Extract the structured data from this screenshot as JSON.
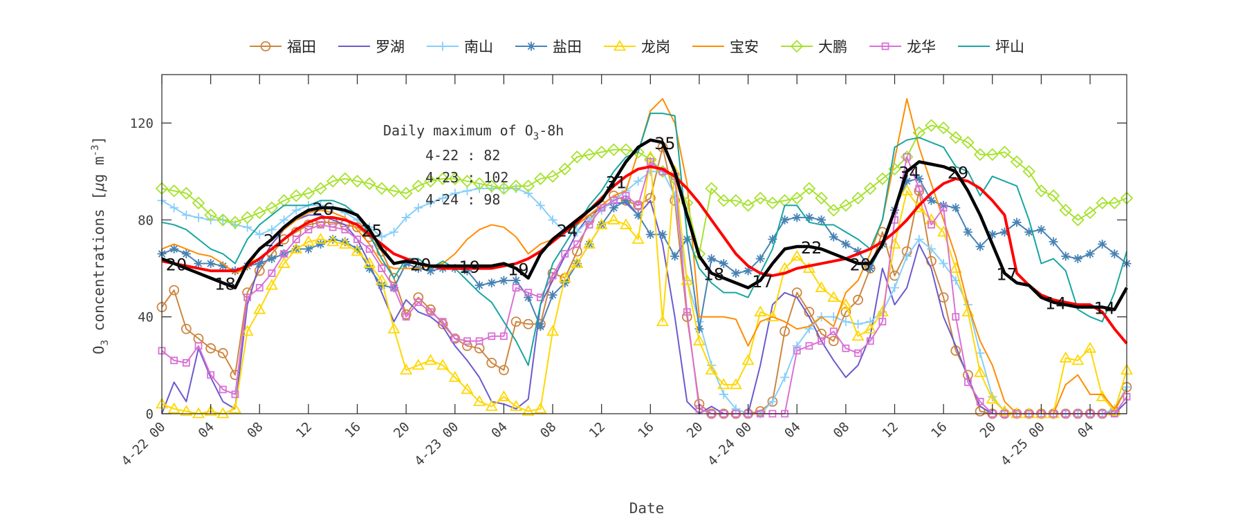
{
  "chart_data": {
    "type": "line",
    "title": "",
    "xlabel": "Date",
    "ylabel": "O3 concentrations [μg m-3]",
    "ylabel_parts": {
      "main": "O",
      "sub": "3",
      "rest": " concentrations [",
      "mu": "μ",
      "unit": "g m",
      "sup": "-3",
      "close": "]"
    },
    "x_unit": "hour since 4-22 00",
    "xlim": [
      0,
      79
    ],
    "ylim": [
      0,
      140
    ],
    "yticks": [
      0,
      40,
      80,
      120
    ],
    "xticks": [
      {
        "x": 0,
        "label": "4-22 00"
      },
      {
        "x": 4,
        "label": "04"
      },
      {
        "x": 8,
        "label": "08"
      },
      {
        "x": 12,
        "label": "12"
      },
      {
        "x": 16,
        "label": "16"
      },
      {
        "x": 20,
        "label": "20"
      },
      {
        "x": 24,
        "label": "4-23 00"
      },
      {
        "x": 28,
        "label": "04"
      },
      {
        "x": 32,
        "label": "08"
      },
      {
        "x": 36,
        "label": "12"
      },
      {
        "x": 40,
        "label": "16"
      },
      {
        "x": 44,
        "label": "20"
      },
      {
        "x": 48,
        "label": "4-24 00"
      },
      {
        "x": 52,
        "label": "04"
      },
      {
        "x": 56,
        "label": "08"
      },
      {
        "x": 60,
        "label": "12"
      },
      {
        "x": 64,
        "label": "16"
      },
      {
        "x": 68,
        "label": "20"
      },
      {
        "x": 72,
        "label": "4-25 00"
      },
      {
        "x": 76,
        "label": "04"
      }
    ],
    "grid": false,
    "legend_position": "top",
    "series": [
      {
        "name": "福田",
        "color": "#CD853F",
        "marker": "circle",
        "values": [
          44,
          51,
          35,
          31,
          27,
          25,
          16,
          50,
          59,
          66,
          72,
          75,
          78,
          79,
          79,
          78,
          77,
          73,
          67,
          56,
          41,
          48,
          43,
          37,
          31,
          28,
          27,
          21,
          18,
          38,
          37,
          37,
          58,
          56,
          67,
          80,
          86,
          90,
          88,
          86,
          89,
          110,
          88,
          40,
          4,
          0,
          0,
          0,
          0,
          1,
          5,
          34,
          50,
          42,
          33,
          30,
          42,
          47,
          60,
          75,
          57,
          67,
          92,
          63,
          48,
          26,
          16,
          1,
          0,
          0,
          0,
          0,
          0,
          0,
          0,
          0,
          0,
          0,
          1,
          11
        ]
      },
      {
        "name": "罗湖",
        "color": "#6A5ACD",
        "marker": "none",
        "values": [
          0,
          13,
          5,
          27,
          15,
          5,
          2,
          45,
          62,
          70,
          76,
          80,
          82,
          82,
          80,
          78,
          72,
          62,
          50,
          38,
          47,
          42,
          40,
          36,
          28,
          22,
          15,
          5,
          4,
          2,
          6,
          45,
          55,
          65,
          75,
          82,
          85,
          87,
          87,
          82,
          88,
          70,
          40,
          5,
          0,
          3,
          0,
          0,
          0,
          20,
          45,
          50,
          48,
          40,
          30,
          22,
          15,
          20,
          32,
          60,
          45,
          52,
          70,
          60,
          40,
          28,
          15,
          3,
          0,
          0,
          0,
          0,
          0,
          0,
          0,
          0,
          0,
          0,
          0,
          5
        ]
      },
      {
        "name": "南山",
        "color": "#87CEFA",
        "marker": "plus",
        "values": [
          88,
          85,
          82,
          81,
          80,
          80,
          78,
          77,
          74,
          76,
          80,
          84,
          86,
          86,
          85,
          83,
          80,
          77,
          73,
          75,
          81,
          85,
          87,
          89,
          91,
          92,
          93,
          93,
          93,
          93,
          91,
          86,
          80,
          75,
          75,
          80,
          84,
          88,
          92,
          96,
          100,
          100,
          90,
          55,
          38,
          20,
          8,
          2,
          0,
          0,
          5,
          15,
          28,
          35,
          40,
          40,
          38,
          37,
          38,
          42,
          52,
          65,
          72,
          68,
          62,
          55,
          45,
          25,
          7,
          1,
          0,
          0,
          0,
          0,
          0,
          0,
          0,
          0,
          2,
          11
        ]
      },
      {
        "name": "盐田",
        "color": "#4682B4",
        "marker": "asterisk",
        "values": [
          66,
          68,
          66,
          62,
          62,
          61,
          59,
          61,
          62,
          64,
          66,
          68,
          68,
          70,
          72,
          71,
          68,
          60,
          53,
          52,
          62,
          60,
          59,
          60,
          60,
          59,
          53,
          54,
          55,
          55,
          48,
          36,
          49,
          54,
          62,
          70,
          78,
          85,
          88,
          82,
          74,
          74,
          65,
          72,
          35,
          64,
          62,
          58,
          59,
          64,
          72,
          80,
          81,
          81,
          80,
          73,
          70,
          67,
          60,
          70,
          84,
          96,
          97,
          88,
          86,
          85,
          75,
          69,
          74,
          75,
          79,
          75,
          76,
          71,
          65,
          64,
          66,
          70,
          66,
          62
        ]
      },
      {
        "name": "龙岗",
        "color": "#FFD700",
        "marker": "triangle",
        "values": [
          4,
          2,
          1,
          0,
          1,
          0,
          2,
          34,
          43,
          53,
          62,
          68,
          71,
          72,
          71,
          70,
          67,
          62,
          55,
          35,
          18,
          20,
          22,
          20,
          15,
          10,
          5,
          3,
          7,
          3,
          1,
          2,
          34,
          56,
          62,
          70,
          78,
          80,
          78,
          72,
          106,
          38,
          100,
          55,
          30,
          18,
          12,
          12,
          22,
          42,
          40,
          60,
          65,
          60,
          52,
          48,
          45,
          32,
          35,
          42,
          70,
          92,
          85,
          80,
          75,
          60,
          42,
          17,
          6,
          1,
          0,
          0,
          0,
          0,
          23,
          22,
          27,
          7,
          1,
          18
        ]
      },
      {
        "name": "宝安",
        "color": "#FF8C00",
        "marker": "none",
        "values": [
          68,
          70,
          68,
          66,
          65,
          62,
          58,
          60,
          68,
          72,
          76,
          80,
          83,
          84,
          83,
          81,
          76,
          70,
          62,
          60,
          60,
          60,
          61,
          62,
          66,
          72,
          76,
          78,
          77,
          73,
          66,
          70,
          72,
          75,
          78,
          82,
          86,
          90,
          92,
          108,
          125,
          130,
          120,
          95,
          40,
          40,
          40,
          39,
          28,
          38,
          40,
          38,
          35,
          36,
          40,
          36,
          50,
          55,
          66,
          80,
          105,
          130,
          110,
          95,
          80,
          65,
          45,
          30,
          20,
          5,
          0,
          0,
          0,
          0,
          12,
          16,
          8,
          8,
          2,
          10
        ]
      },
      {
        "name": "大鹏",
        "color": "#A6E22E",
        "marker": "diamond",
        "values": [
          93,
          92,
          91,
          87,
          82,
          80,
          79,
          81,
          83,
          85,
          88,
          90,
          91,
          93,
          96,
          97,
          96,
          95,
          93,
          92,
          91,
          94,
          96,
          97,
          97,
          96,
          95,
          94,
          93,
          94,
          94,
          97,
          98,
          101,
          106,
          107,
          108,
          109,
          109,
          108,
          105,
          100,
          97,
          87,
          66,
          93,
          88,
          88,
          86,
          89,
          87,
          88,
          89,
          93,
          89,
          84,
          86,
          89,
          93,
          97,
          101,
          106,
          116,
          119,
          118,
          114,
          112,
          107,
          107,
          108,
          104,
          100,
          92,
          90,
          84,
          80,
          83,
          87,
          87,
          89
        ]
      },
      {
        "name": "龙华",
        "color": "#DA70D6",
        "marker": "square",
        "values": [
          26,
          22,
          21,
          28,
          16,
          10,
          8,
          48,
          52,
          58,
          66,
          72,
          76,
          78,
          77,
          76,
          72,
          68,
          60,
          52,
          40,
          46,
          42,
          38,
          31,
          30,
          30,
          32,
          32,
          52,
          50,
          48,
          57,
          66,
          70,
          78,
          85,
          88,
          90,
          86,
          104,
          100,
          98,
          42,
          2,
          0,
          0,
          0,
          0,
          0,
          0,
          0,
          26,
          28,
          30,
          34,
          27,
          25,
          30,
          38,
          80,
          106,
          93,
          78,
          85,
          40,
          13,
          5,
          0,
          0,
          0,
          0,
          0,
          0,
          0,
          0,
          0,
          0,
          0,
          7
        ]
      },
      {
        "name": "坪山",
        "color": "#17A5A0",
        "marker": "none",
        "values": [
          79,
          78,
          76,
          72,
          68,
          66,
          62,
          72,
          78,
          82,
          86,
          86,
          86,
          88,
          88,
          86,
          82,
          74,
          64,
          56,
          64,
          64,
          60,
          63,
          60,
          55,
          50,
          46,
          38,
          30,
          20,
          45,
          62,
          70,
          78,
          86,
          92,
          100,
          106,
          108,
          124,
          124,
          123,
          74,
          60,
          54,
          50,
          50,
          48,
          58,
          68,
          86,
          86,
          79,
          78,
          78,
          75,
          72,
          68,
          80,
          110,
          113,
          114,
          112,
          110,
          102,
          100,
          90,
          98,
          96,
          94,
          80,
          62,
          64,
          59,
          43,
          40,
          38,
          50,
          67
        ]
      }
    ],
    "mean_line": {
      "color": "#000000",
      "values": [
        64,
        62,
        60,
        58,
        56,
        54,
        52,
        62,
        68,
        72,
        77,
        81,
        84,
        85,
        85,
        84,
        82,
        76,
        68,
        62,
        63,
        62,
        61,
        61,
        61,
        61,
        61,
        61,
        62,
        60,
        56,
        66,
        72,
        76,
        80,
        84,
        88,
        96,
        104,
        110,
        113,
        112,
        100,
        82,
        65,
        58,
        56,
        54,
        52,
        55,
        62,
        68,
        69,
        69,
        68,
        66,
        64,
        62,
        62,
        70,
        84,
        100,
        104,
        103,
        102,
        100,
        92,
        82,
        70,
        58,
        54,
        53,
        48,
        46,
        45,
        44,
        44,
        44,
        43,
        52
      ]
    },
    "smooth_line": {
      "color": "#FF0000",
      "values": [
        63,
        62,
        61,
        60,
        59,
        59,
        59,
        61,
        64,
        68,
        72,
        76,
        79,
        81,
        81,
        80,
        78,
        74,
        70,
        66,
        64,
        62,
        61,
        60,
        60,
        60,
        60,
        60,
        61,
        62,
        64,
        67,
        71,
        75,
        79,
        84,
        89,
        94,
        98,
        101,
        102,
        101,
        98,
        93,
        87,
        80,
        73,
        66,
        61,
        58,
        57,
        58,
        60,
        61,
        62,
        63,
        64,
        66,
        68,
        71,
        75,
        80,
        86,
        91,
        95,
        97,
        96,
        93,
        88,
        82,
        58,
        53,
        49,
        47,
        46,
        45,
        45,
        42,
        35,
        29
      ]
    },
    "point_labels": [
      {
        "x": 1,
        "text": "20"
      },
      {
        "x": 5,
        "text": "18"
      },
      {
        "x": 9,
        "text": "21"
      },
      {
        "x": 13,
        "text": "26"
      },
      {
        "x": 17,
        "text": "25"
      },
      {
        "x": 21,
        "text": "20"
      },
      {
        "x": 25,
        "text": "19"
      },
      {
        "x": 29,
        "text": "19"
      },
      {
        "x": 33,
        "text": "24"
      },
      {
        "x": 37,
        "text": "31"
      },
      {
        "x": 41,
        "text": "35"
      },
      {
        "x": 45,
        "text": "18"
      },
      {
        "x": 49,
        "text": "17"
      },
      {
        "x": 53,
        "text": "22"
      },
      {
        "x": 57,
        "text": "20"
      },
      {
        "x": 61,
        "text": "34"
      },
      {
        "x": 65,
        "text": "29"
      },
      {
        "x": 69,
        "text": "17"
      },
      {
        "x": 73,
        "text": "14"
      },
      {
        "x": 77,
        "text": "14"
      }
    ],
    "annotation": {
      "title_main": "Daily maximum of O",
      "title_sub": "3",
      "title_rest": "-8h",
      "lines": [
        "4-22 : 82",
        "4-23 : 102",
        "4-24 : 98"
      ]
    }
  }
}
